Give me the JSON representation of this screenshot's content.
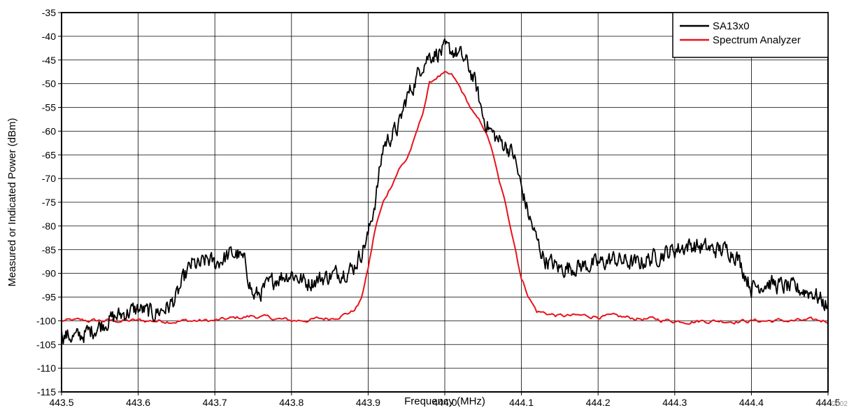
{
  "chart_data": {
    "type": "line",
    "title": "",
    "xlabel": "Frequency (MHz)",
    "ylabel": "Measured or Indicated Power (dBm)",
    "xlim": [
      443.5,
      444.5
    ],
    "ylim": [
      -115,
      -35
    ],
    "x_ticks": [
      "443.5",
      "443.6",
      "443.7",
      "443.8",
      "443.9",
      "444.0",
      "444.1",
      "444.2",
      "444.3",
      "444.4",
      "444.5"
    ],
    "y_ticks": [
      "-35",
      "-40",
      "-45",
      "-50",
      "-55",
      "-60",
      "-65",
      "-70",
      "-75",
      "-80",
      "-85",
      "-90",
      "-95",
      "-100",
      "-105",
      "-110",
      "-115"
    ],
    "grid": true,
    "legend_position": "top-right",
    "figure_id": "D002",
    "series": [
      {
        "name": "SA13x0",
        "color": "#000000",
        "noise": 1.6,
        "x": [
          443.5,
          443.52,
          443.54,
          443.56,
          443.58,
          443.6,
          443.62,
          443.64,
          443.65,
          443.66,
          443.67,
          443.68,
          443.69,
          443.7,
          443.72,
          443.73,
          443.74,
          443.75,
          443.76,
          443.78,
          443.8,
          443.82,
          443.84,
          443.86,
          443.88,
          443.89,
          443.9,
          443.91,
          443.92,
          443.94,
          443.95,
          443.96,
          443.97,
          443.98,
          443.99,
          444.0,
          444.01,
          444.02,
          444.03,
          444.04,
          444.05,
          444.06,
          444.07,
          444.08,
          444.09,
          444.1,
          444.11,
          444.12,
          444.13,
          444.15,
          444.2,
          444.22,
          444.25,
          444.3,
          444.32,
          444.35,
          444.37,
          444.38,
          444.4,
          444.42,
          444.45,
          444.48,
          444.5
        ],
        "y": [
          -103,
          -103.5,
          -102,
          -100,
          -98.5,
          -97.5,
          -98.5,
          -97,
          -95,
          -91,
          -88,
          -88.5,
          -87,
          -88,
          -86,
          -86,
          -88,
          -95,
          -94,
          -91,
          -90,
          -92,
          -91,
          -90,
          -89,
          -86,
          -82,
          -74,
          -63,
          -59,
          -53,
          -50,
          -46,
          -44,
          -43.5,
          -43,
          -43,
          -44,
          -46,
          -50,
          -57,
          -60,
          -62,
          -63,
          -65,
          -72,
          -78,
          -83,
          -87,
          -89,
          -88,
          -87,
          -88,
          -85,
          -84,
          -85,
          -85,
          -86,
          -93,
          -92,
          -93,
          -94,
          -97
        ]
      },
      {
        "name": "Spectrum Analyzer",
        "color": "#e8131b",
        "noise": 0.35,
        "x": [
          443.5,
          443.55,
          443.6,
          443.65,
          443.7,
          443.75,
          443.8,
          443.85,
          443.88,
          443.89,
          443.9,
          443.91,
          443.92,
          443.94,
          443.95,
          443.96,
          443.97,
          443.98,
          443.99,
          444.0,
          444.01,
          444.02,
          444.03,
          444.04,
          444.05,
          444.06,
          444.07,
          444.08,
          444.09,
          444.1,
          444.11,
          444.12,
          444.15,
          444.2,
          444.3,
          444.4,
          444.45,
          444.5
        ],
        "y": [
          -100,
          -100,
          -100,
          -100,
          -100,
          -99,
          -100,
          -99.5,
          -98,
          -96,
          -89,
          -80,
          -75,
          -68,
          -66,
          -62,
          -57,
          -50,
          -48.5,
          -48,
          -48.5,
          -51,
          -54,
          -57,
          -59,
          -63,
          -70,
          -76,
          -83,
          -91,
          -95,
          -98,
          -99,
          -99,
          -100,
          -100,
          -100,
          -100
        ]
      }
    ]
  }
}
